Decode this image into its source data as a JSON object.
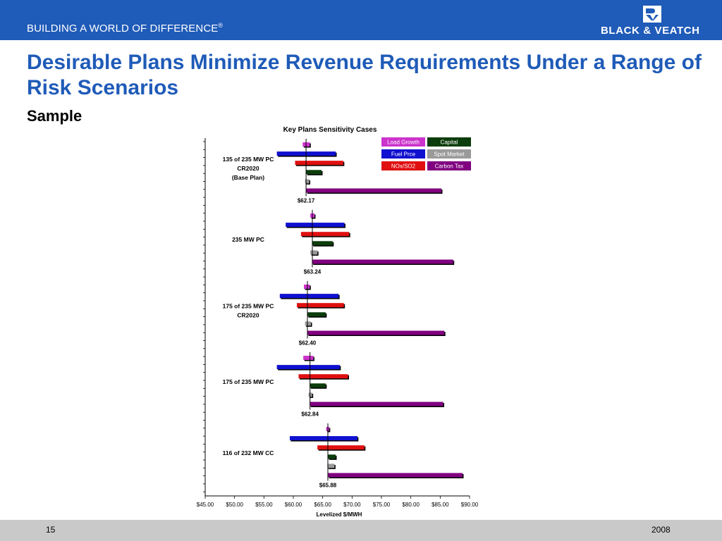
{
  "header": {
    "tagline": "BUILDING A WORLD OF DIFFERENCE",
    "tagline_mark": "®",
    "logo_text": "BLACK & VEATCH"
  },
  "slide": {
    "title": "Desirable Plans Minimize Revenue Requirements Under a Range of Risk Scenarios",
    "subtitle": "Sample"
  },
  "footer": {
    "page_number": "15",
    "year": "2008"
  },
  "colors": {
    "brand_blue": "#1f5bb8",
    "load_growth": "#cc33cc",
    "fuel_price": "#1010d0",
    "nox_so2": "#e01010",
    "capital": "#0c3d0c",
    "spot_market": "#9a9a9a",
    "carbon_tax": "#800080"
  },
  "chart_data": {
    "type": "bar",
    "orientation": "horizontal",
    "title": "Key Plans Sensitivity Cases",
    "xlabel": "Levelized $/MWH",
    "xlim": [
      45,
      90
    ],
    "xticks": [
      "$45.00",
      "$50.00",
      "$55.00",
      "$60.00",
      "$65.00",
      "$70.00",
      "$75.00",
      "$80.00",
      "$85.00",
      "$90.00"
    ],
    "legend": [
      {
        "name": "Load Growth",
        "color": "#cc33cc"
      },
      {
        "name": "Capital",
        "color": "#0c3d0c"
      },
      {
        "name": "Fuel Prce",
        "color": "#1010d0"
      },
      {
        "name": "Spot Market",
        "color": "#9a9a9a"
      },
      {
        "name": "NOx/SO2",
        "color": "#e01010"
      },
      {
        "name": "Carbon Tax",
        "color": "#800080"
      }
    ],
    "series_order": [
      "Load Growth",
      "Fuel Prce",
      "NOx/SO2",
      "Capital",
      "Spot Market",
      "Carbon Tax"
    ],
    "series_colors": [
      "#cc33cc",
      "#1010d0",
      "#e01010",
      "#0c3d0c",
      "#9a9a9a",
      "#800080"
    ],
    "plans": [
      {
        "label": [
          "135 of 235 MW PC",
          "CR2020",
          "(Base Plan)"
        ],
        "base": 62.17,
        "base_label": "$62.17",
        "ranges": [
          [
            61.6,
            62.8
          ],
          [
            57.2,
            67.2
          ],
          [
            60.3,
            68.5
          ],
          [
            62.2,
            64.8
          ],
          [
            62.0,
            62.7
          ],
          [
            62.2,
            85.2
          ]
        ]
      },
      {
        "label": [
          "235 MW PC"
        ],
        "base": 63.24,
        "base_label": "$63.24",
        "ranges": [
          [
            62.9,
            63.6
          ],
          [
            58.7,
            68.7
          ],
          [
            61.3,
            69.5
          ],
          [
            63.2,
            66.7
          ],
          [
            62.9,
            64.1
          ],
          [
            63.2,
            87.2
          ]
        ]
      },
      {
        "label": [
          "175 of 235 MW PC",
          "CR2020"
        ],
        "base": 62.4,
        "base_label": "$62.40",
        "ranges": [
          [
            61.8,
            62.8
          ],
          [
            57.7,
            67.7
          ],
          [
            60.6,
            68.6
          ],
          [
            62.4,
            65.5
          ],
          [
            62.0,
            63.0
          ],
          [
            62.4,
            85.7
          ]
        ]
      },
      {
        "label": [
          "175 of 235 MW PC"
        ],
        "base": 62.84,
        "base_label": "$62.84",
        "ranges": [
          [
            61.7,
            63.4
          ],
          [
            57.2,
            67.9
          ],
          [
            60.9,
            69.3
          ],
          [
            62.8,
            65.5
          ],
          [
            62.6,
            63.2
          ],
          [
            62.8,
            85.5
          ]
        ]
      },
      {
        "label": [
          "116 of 232 MW CC"
        ],
        "base": 65.88,
        "base_label": "$65.88",
        "ranges": [
          [
            65.6,
            66.1
          ],
          [
            59.4,
            70.9
          ],
          [
            64.1,
            72.1
          ],
          [
            65.9,
            67.2
          ],
          [
            65.8,
            67.0
          ],
          [
            65.9,
            88.8
          ]
        ]
      }
    ]
  }
}
